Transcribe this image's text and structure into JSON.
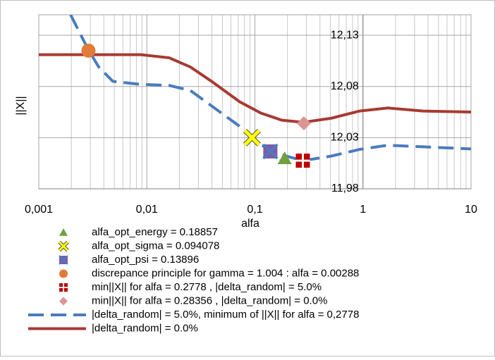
{
  "chart_data": {
    "type": "line",
    "x_label": "alfa",
    "y_label": "||X||",
    "xscale": "log",
    "xlim": [
      0.001,
      10
    ],
    "ylim": [
      11.98,
      12.15
    ],
    "xticks": [
      {
        "value": 0.001,
        "label": "0,001"
      },
      {
        "value": 0.01,
        "label": "0,01"
      },
      {
        "value": 0.1,
        "label": "0,1"
      },
      1,
      10
    ],
    "yticks": [
      {
        "value": 11.98,
        "label": "11,98"
      },
      {
        "value": 12.03,
        "label": "12,03"
      },
      {
        "value": 12.08,
        "label": "12,08"
      },
      {
        "value": 12.13,
        "label": "12,13"
      }
    ],
    "y_axis_crosses_at_x": 1,
    "grid": true,
    "minor_grid": true,
    "legend": "bottom",
    "series": [
      {
        "name": "alfa_opt_energy = 0.18857",
        "kind": "marker",
        "marker": "triangle",
        "color": "#70a040",
        "x": [
          0.18857
        ],
        "values": [
          12.0096
        ]
      },
      {
        "name": "alfa_opt_sigma = 0.094078",
        "kind": "marker",
        "marker": "x",
        "color": "#ffff00",
        "x": [
          0.094078
        ],
        "values": [
          12.03
        ]
      },
      {
        "name": "alfa_opt_psi = 0.13896",
        "kind": "marker",
        "marker": "square-x",
        "color": "#7e5ba8",
        "x": [
          0.13896
        ],
        "values": [
          12.0165
        ]
      },
      {
        "name": "discrepance principle for gamma = 1.004 : alfa = 0.00288",
        "kind": "marker",
        "marker": "circle",
        "color": "#e07b39",
        "x": [
          0.00288
        ],
        "values": [
          12.115
        ]
      },
      {
        "name": "min||X|| for alfa = 0.2778 , |delta_random| = 5.0%",
        "kind": "marker",
        "marker": "square-plus",
        "color": "#c00000",
        "x": [
          0.2778
        ],
        "values": [
          12.0075
        ]
      },
      {
        "name": "min||X|| for alfa = 0.28356 , |delta_random| = 0.0%",
        "kind": "marker",
        "marker": "diamond",
        "color": "#d99694",
        "x": [
          0.28356
        ],
        "values": [
          12.044
        ]
      },
      {
        "name": "|delta_random| = 5.0%, minimum of ||X|| for alfa = 0,2778",
        "kind": "line",
        "dash": true,
        "color": "#4a7bbf",
        "x": [
          0.00197,
          0.00287,
          0.00359,
          0.00484,
          0.00883,
          0.0161,
          0.0253,
          0.0397,
          0.0724,
          0.1136,
          0.178,
          0.28,
          0.511,
          0.931,
          1.698,
          3.6,
          10
        ],
        "values": [
          12.15,
          12.116,
          12.099,
          12.085,
          12.082,
          12.081,
          12.076,
          12.061,
          12.041,
          12.023,
          12.013,
          12.0075,
          12.012,
          12.0185,
          12.0226,
          12.021,
          12.019
        ]
      },
      {
        "name": "|delta_random| = 0.0%",
        "kind": "line",
        "dash": false,
        "color": "#a83a32",
        "x": [
          0.001,
          0.00197,
          0.00883,
          0.0161,
          0.0253,
          0.0397,
          0.0724,
          0.1136,
          0.178,
          0.28,
          0.511,
          0.931,
          1.698,
          3.6,
          10
        ],
        "values": [
          12.111,
          12.111,
          12.111,
          12.108,
          12.099,
          12.085,
          12.065,
          12.054,
          12.047,
          12.045,
          12.049,
          12.056,
          12.059,
          12.056,
          12.055
        ]
      }
    ]
  }
}
